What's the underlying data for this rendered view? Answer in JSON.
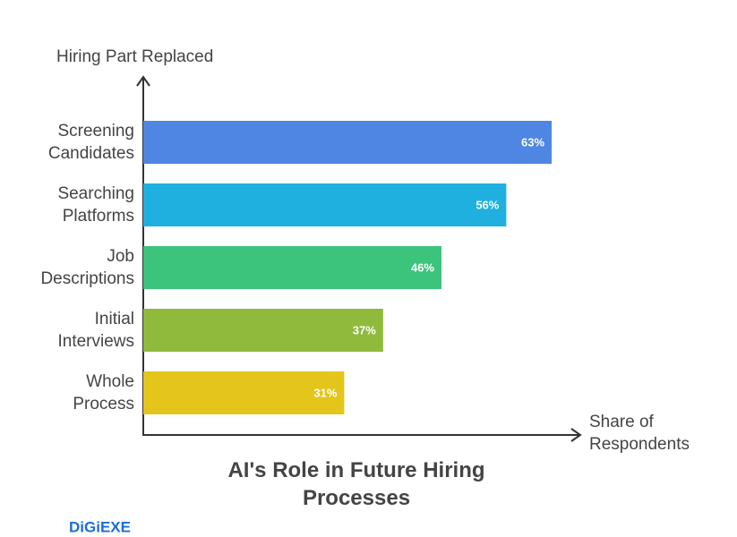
{
  "chart_data": {
    "type": "bar",
    "orientation": "horizontal",
    "title": "AI's Role in Future Hiring Processes",
    "y_label": "Hiring Part Replaced",
    "x_label": "Share of Respondents",
    "categories": [
      "Screening Candidates",
      "Searching Platforms",
      "Job Descriptions",
      "Initial Interviews",
      "Whole Process"
    ],
    "values": [
      63,
      56,
      46,
      37,
      31
    ],
    "value_labels": [
      "63%",
      "56%",
      "46%",
      "37%",
      "31%"
    ],
    "colors": [
      "#4f86e4",
      "#1fb0e0",
      "#3cc47c",
      "#8fba3c",
      "#e3c51c"
    ],
    "xlim": [
      0,
      67
    ]
  },
  "brand": "DiGiEXE"
}
